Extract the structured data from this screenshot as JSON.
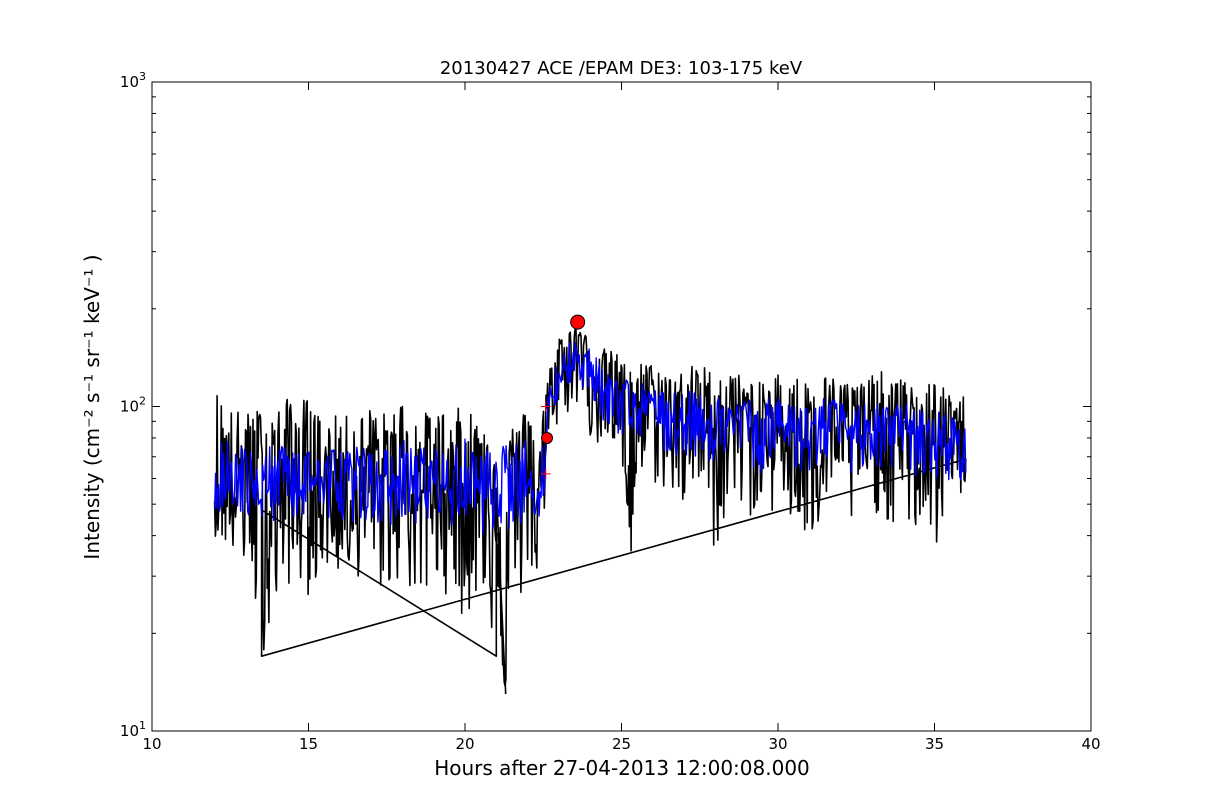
{
  "chart_data": {
    "type": "line",
    "title": "20130427 ACE /EPAM DE3: 103-175 keV",
    "xlabel": "Hours after 27-04-2013 12:00:08.000",
    "ylabel": "Intensity (cm⁻² s⁻¹ sr⁻¹ keV⁻¹ )",
    "xlim": [
      10,
      40
    ],
    "ylim": [
      10,
      1000
    ],
    "yscale": "log",
    "grid": false,
    "x_ticks": [
      "10",
      "15",
      "20",
      "25",
      "30",
      "35",
      "40"
    ],
    "y_ticks": [
      {
        "base": "10",
        "exp": "1"
      },
      {
        "base": "10",
        "exp": "2"
      },
      {
        "base": "10",
        "exp": "3"
      }
    ],
    "series": [
      {
        "color": "#000000",
        "style": "raw intensity",
        "x": [
          12.0,
          12.5,
          13.0,
          13.5,
          14.0,
          14.5,
          15.0,
          15.5,
          16.0,
          16.5,
          17.0,
          17.5,
          18.0,
          18.5,
          19.0,
          19.5,
          20.0,
          20.5,
          21.0,
          21.3,
          21.5,
          22.0,
          22.5,
          22.7,
          23.0,
          23.3,
          23.6,
          24.0,
          24.5,
          25.0,
          25.3,
          25.5,
          26.0,
          26.5,
          27.0,
          27.5,
          28.0,
          28.5,
          29.0,
          29.5,
          30.0,
          30.5,
          31.0,
          31.5,
          32.0,
          32.5,
          33.0,
          33.5,
          34.0,
          34.5,
          35.0,
          35.5,
          36.0
        ],
        "y": [
          58,
          52,
          65,
          48,
          60,
          55,
          62,
          50,
          58,
          56,
          60,
          52,
          64,
          55,
          58,
          54,
          60,
          52,
          56,
          13,
          58,
          60,
          56,
          105,
          120,
          150,
          165,
          135,
          118,
          108,
          34,
          104,
          96,
          92,
          88,
          95,
          85,
          90,
          92,
          80,
          88,
          85,
          80,
          90,
          86,
          82,
          88,
          80,
          85,
          78,
          80,
          75,
          76
        ],
        "low": [
          40,
          36,
          30,
          17,
          22,
          30,
          26,
          32,
          30,
          30,
          28,
          26,
          30,
          22,
          28,
          26,
          21,
          27,
          17,
          13,
          21,
          28,
          30,
          72,
          90,
          95,
          100,
          80,
          70,
          65,
          34,
          60,
          58,
          54,
          48,
          55,
          34,
          50,
          45,
          48,
          46,
          42,
          32,
          48,
          46,
          40,
          48,
          44,
          38,
          42,
          34,
          50,
          55
        ],
        "high": [
          115,
          100,
          95,
          100,
          98,
          110,
          105,
          90,
          95,
          92,
          100,
          95,
          105,
          92,
          100,
          95,
          102,
          90,
          100,
          60,
          92,
          98,
          105,
          130,
          170,
          172,
          178,
          160,
          150,
          145,
          130,
          140,
          135,
          128,
          130,
          138,
          125,
          130,
          122,
          118,
          128,
          125,
          120,
          125,
          122,
          118,
          125,
          130,
          120,
          115,
          120,
          110,
          108
        ]
      },
      {
        "color": "#0000ff",
        "style": "smoothed intensity",
        "x": [
          12.0,
          12.5,
          13.0,
          13.5,
          14.0,
          14.5,
          15.0,
          15.5,
          16.0,
          16.5,
          17.0,
          17.5,
          18.0,
          18.5,
          19.0,
          19.5,
          20.0,
          20.5,
          21.0,
          21.5,
          22.0,
          22.5,
          22.7,
          23.0,
          23.3,
          23.6,
          24.0,
          24.5,
          25.0,
          25.5,
          26.0,
          26.5,
          27.0,
          27.5,
          28.0,
          28.5,
          29.0,
          29.5,
          30.0,
          30.5,
          31.0,
          31.5,
          32.0,
          32.5,
          33.0,
          33.5,
          34.0,
          34.5,
          35.0,
          35.5,
          36.0
        ],
        "y": [
          60,
          62,
          57,
          55,
          60,
          58,
          61,
          56,
          59,
          57,
          60,
          55,
          61,
          57,
          59,
          56,
          60,
          55,
          58,
          58,
          60,
          58,
          105,
          118,
          140,
          148,
          130,
          112,
          105,
          100,
          95,
          92,
          90,
          92,
          88,
          90,
          90,
          84,
          88,
          85,
          84,
          88,
          86,
          84,
          86,
          82,
          84,
          80,
          80,
          76,
          76
        ],
        "low": [
          46,
          48,
          44,
          42,
          44,
          45,
          44,
          42,
          45,
          44,
          45,
          42,
          46,
          42,
          44,
          42,
          44,
          40,
          42,
          42,
          44,
          44,
          82,
          95,
          115,
          120,
          100,
          88,
          80,
          76,
          72,
          70,
          68,
          70,
          66,
          68,
          66,
          62,
          64,
          64,
          62,
          66,
          64,
          62,
          64,
          60,
          62,
          60,
          58,
          58,
          60
        ],
        "high": [
          90,
          82,
          76,
          72,
          78,
          76,
          80,
          74,
          78,
          76,
          78,
          74,
          80,
          74,
          78,
          74,
          80,
          72,
          76,
          76,
          80,
          78,
          120,
          145,
          160,
          160,
          150,
          132,
          125,
          120,
          115,
          110,
          112,
          110,
          108,
          110,
          108,
          104,
          108,
          104,
          104,
          108,
          104,
          100,
          104,
          100,
          104,
          98,
          100,
          94,
          90
        ]
      }
    ],
    "markers": [
      {
        "x": 22.62,
        "y": 80,
        "color": "#ff0000",
        "shape": "circle"
      },
      {
        "x": 23.6,
        "y": 182,
        "color": "#ff0000",
        "shape": "circle"
      }
    ],
    "crosses": [
      {
        "x": 22.58,
        "y": 62
      },
      {
        "x": 22.58,
        "y": 100
      }
    ]
  }
}
